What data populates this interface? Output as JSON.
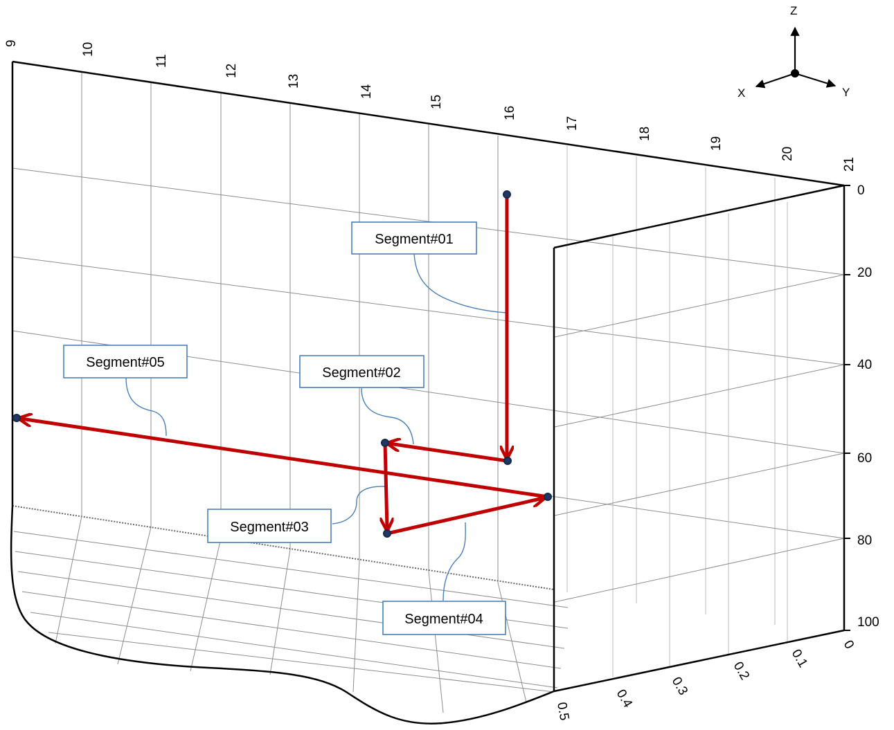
{
  "axes_indicator": {
    "z": "Z",
    "x": "X",
    "y": "Y"
  },
  "top_axis_ticks": [
    "9",
    "10",
    "11",
    "12",
    "13",
    "14",
    "15",
    "16",
    "17",
    "18",
    "19",
    "20",
    "21"
  ],
  "right_axis_ticks": [
    "0",
    "20",
    "40",
    "60",
    "80",
    "100"
  ],
  "bottom_axis_ticks": [
    "0",
    "0.1",
    "0.2",
    "0.3",
    "0.4",
    "0.5"
  ],
  "segments": [
    {
      "label": "Segment#01"
    },
    {
      "label": "Segment#02"
    },
    {
      "label": "Segment#03"
    },
    {
      "label": "Segment#04"
    },
    {
      "label": "Segment#05"
    }
  ],
  "colors": {
    "path": "#c00000",
    "node": "#1f3864",
    "callout_border": "#4a7eb8"
  }
}
